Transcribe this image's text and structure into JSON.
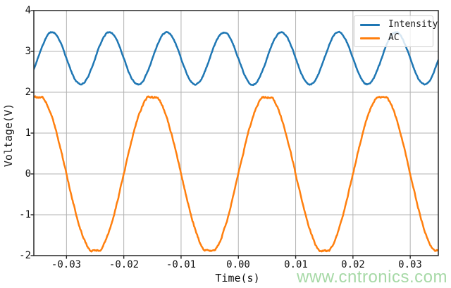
{
  "chart_data": {
    "type": "line",
    "title": "",
    "xlabel": "Time(s)",
    "ylabel": "Voltage(V)",
    "xlim": [
      -0.0357,
      0.0349
    ],
    "ylim": [
      -2,
      4
    ],
    "x_ticks": [
      -0.03,
      -0.02,
      -0.01,
      0.0,
      0.01,
      0.02,
      0.03
    ],
    "x_tick_labels": [
      "-0.03",
      "-0.02",
      "-0.01",
      "0.00",
      "0.01",
      "0.02",
      "0.03"
    ],
    "y_ticks": [
      4,
      3,
      2,
      1,
      0,
      -1,
      -2
    ],
    "y_tick_labels": [
      "4",
      "3",
      "2",
      "1",
      "0",
      "-1",
      "-2"
    ],
    "grid": true,
    "grid_color": "#b3b3b3",
    "spine_color": "#262626",
    "legend_position": "upper right",
    "series": [
      {
        "name": "Intensity",
        "color": "#1f77b4",
        "waveform": "sine",
        "model": "v(t) = offset_v + amplitude_v * sin(2*pi*frequency_hz*t + phase_deg) + noise",
        "offset_v": 2.83,
        "amplitude_v": 0.64,
        "frequency_hz": 100,
        "phase_deg": 180,
        "clip_v": null,
        "noise_v": 0.013,
        "approx_range_v": [
          2.2,
          3.47
        ]
      },
      {
        "name": "AC",
        "color": "#ff7f0e",
        "waveform": "sine",
        "model": "v(t) = offset_v + amplitude_v * sin(2*pi*frequency_hz*t + phase_deg), clipped to ±clip_v, + noise",
        "offset_v": 0,
        "amplitude_v": 1.95,
        "frequency_hz": 50,
        "phase_deg": 0,
        "clip_v": 1.88,
        "noise_v": 0.02,
        "approx_range_v": [
          -1.88,
          1.88
        ]
      }
    ]
  },
  "watermark": {
    "text": "www.cntronics.com",
    "color": "#a6d9a6"
  }
}
